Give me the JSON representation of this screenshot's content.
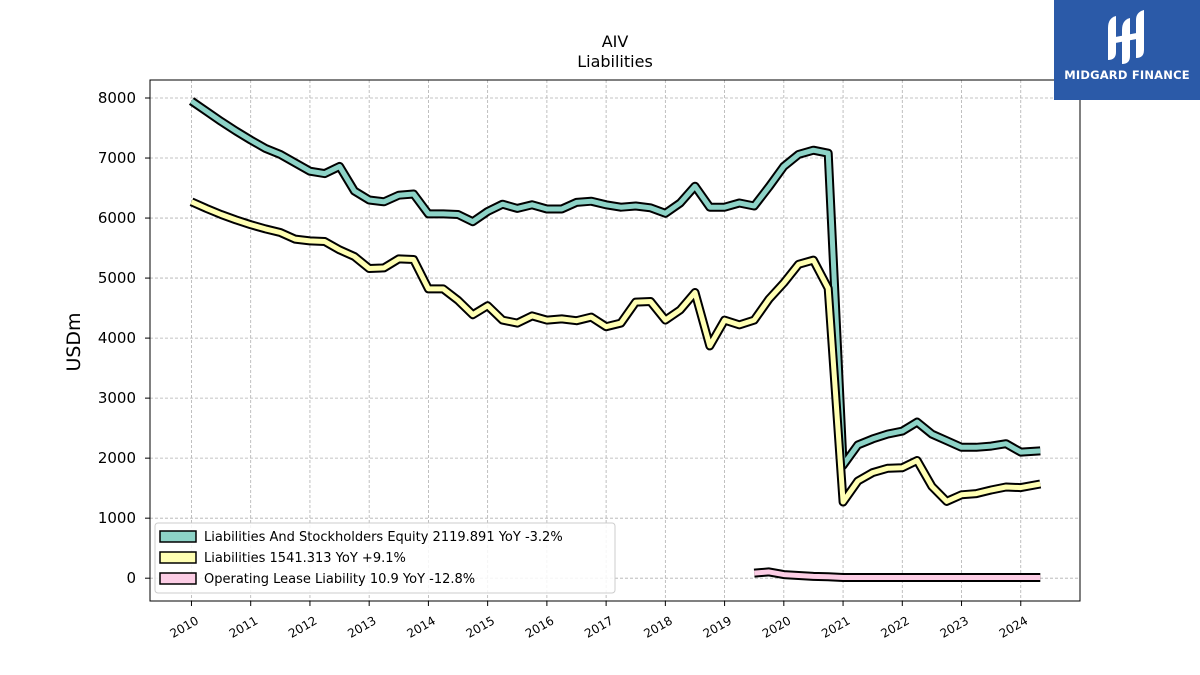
{
  "chart_data": {
    "type": "line",
    "title": "AIV",
    "subtitle": "Liabilities",
    "xlabel": "",
    "ylabel": "USDm",
    "xlim": [
      2009.3,
      2025.0
    ],
    "ylim": [
      -380,
      8300
    ],
    "x_ticks": [
      "2010",
      "2011",
      "2012",
      "2013",
      "2014",
      "2015",
      "2016",
      "2017",
      "2018",
      "2019",
      "2020",
      "2021",
      "2022",
      "2023",
      "2024"
    ],
    "y_ticks": [
      "0",
      "1000",
      "2000",
      "3000",
      "4000",
      "5000",
      "6000",
      "7000",
      "8000"
    ],
    "grid": true,
    "legend_position": "lower-left",
    "series": [
      {
        "name": "Liabilities And Stockholders Equity",
        "legend": "Liabilities And Stockholders Equity  2119.891 YoY -3.2%",
        "color": "#8dd3c7",
        "x": [
          2010.0,
          2010.25,
          2010.5,
          2010.75,
          2011.0,
          2011.25,
          2011.5,
          2011.75,
          2012.0,
          2012.25,
          2012.5,
          2012.75,
          2013.0,
          2013.25,
          2013.5,
          2013.75,
          2014.0,
          2014.25,
          2014.5,
          2014.75,
          2015.0,
          2015.25,
          2015.5,
          2015.75,
          2016.0,
          2016.25,
          2016.5,
          2016.75,
          2017.0,
          2017.25,
          2017.5,
          2017.75,
          2018.0,
          2018.25,
          2018.5,
          2018.75,
          2019.0,
          2019.25,
          2019.5,
          2019.75,
          2020.0,
          2020.25,
          2020.5,
          2020.75,
          2021.0,
          2021.25,
          2021.5,
          2021.75,
          2022.0,
          2022.25,
          2022.5,
          2022.75,
          2023.0,
          2023.25,
          2023.5,
          2023.75,
          2024.0,
          2024.33
        ],
        "values": [
          7950,
          7780,
          7610,
          7450,
          7300,
          7160,
          7060,
          6920,
          6780,
          6740,
          6860,
          6450,
          6300,
          6270,
          6380,
          6400,
          6070,
          6070,
          6060,
          5940,
          6110,
          6230,
          6160,
          6220,
          6150,
          6150,
          6260,
          6280,
          6220,
          6180,
          6200,
          6170,
          6080,
          6250,
          6530,
          6180,
          6180,
          6250,
          6200,
          6520,
          6860,
          7060,
          7130,
          7080,
          1880,
          2220,
          2320,
          2400,
          2450,
          2600,
          2400,
          2290,
          2180,
          2180,
          2200,
          2240,
          2100,
          2120
        ]
      },
      {
        "name": "Liabilities",
        "legend": "Liabilities  1541.313 YoY +9.1%",
        "color": "#ffffb3",
        "x": [
          2010.0,
          2010.25,
          2010.5,
          2010.75,
          2011.0,
          2011.25,
          2011.5,
          2011.75,
          2012.0,
          2012.25,
          2012.5,
          2012.75,
          2013.0,
          2013.25,
          2013.5,
          2013.75,
          2014.0,
          2014.25,
          2014.5,
          2014.75,
          2015.0,
          2015.25,
          2015.5,
          2015.75,
          2016.0,
          2016.25,
          2016.5,
          2016.75,
          2017.0,
          2017.25,
          2017.5,
          2017.75,
          2018.0,
          2018.25,
          2018.5,
          2018.75,
          2019.0,
          2019.25,
          2019.5,
          2019.75,
          2020.0,
          2020.25,
          2020.5,
          2020.75,
          2021.0,
          2021.25,
          2021.5,
          2021.75,
          2022.0,
          2022.25,
          2022.5,
          2022.75,
          2023.0,
          2023.25,
          2023.5,
          2023.75,
          2024.0,
          2024.33
        ],
        "values": [
          6270,
          6160,
          6060,
          5970,
          5890,
          5820,
          5760,
          5650,
          5620,
          5610,
          5470,
          5360,
          5160,
          5170,
          5320,
          5310,
          4820,
          4820,
          4630,
          4390,
          4540,
          4300,
          4250,
          4370,
          4300,
          4320,
          4290,
          4350,
          4190,
          4250,
          4600,
          4610,
          4300,
          4470,
          4760,
          3870,
          4300,
          4220,
          4300,
          4650,
          4920,
          5230,
          5300,
          4830,
          1270,
          1620,
          1760,
          1830,
          1840,
          1960,
          1530,
          1280,
          1390,
          1410,
          1470,
          1520,
          1510,
          1570
        ]
      },
      {
        "name": "Operating Lease Liability",
        "legend": "Operating Lease Liability  10.9 YoY -12.8%",
        "color": "#fccde5",
        "x": [
          2019.5,
          2019.75,
          2020.0,
          2020.25,
          2020.5,
          2020.75,
          2021.0,
          2021.25,
          2021.5,
          2021.75,
          2022.0,
          2022.25,
          2022.5,
          2022.75,
          2023.0,
          2023.25,
          2023.5,
          2023.75,
          2024.0,
          2024.33
        ],
        "values": [
          85,
          105,
          60,
          45,
          30,
          25,
          12,
          12,
          12,
          12,
          12,
          12,
          12,
          12,
          12,
          12,
          12,
          11,
          11,
          11
        ]
      }
    ]
  },
  "logo": {
    "text": "MIDGARD FINANCE",
    "background": "#2b5aa8"
  }
}
